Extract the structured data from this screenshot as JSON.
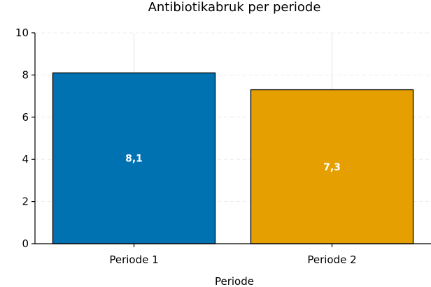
{
  "chart_data": {
    "type": "bar",
    "title": "Antibiotikabruk per periode",
    "xlabel": "Periode",
    "ylabel": "",
    "categories": [
      "Periode 1",
      "Periode 2"
    ],
    "values": [
      8.1,
      7.3
    ],
    "data_labels": [
      "8,1",
      "7,3"
    ],
    "colors": [
      "#0072b2",
      "#e69f00"
    ],
    "ylim": [
      0,
      10
    ],
    "yticks": [
      0,
      2,
      4,
      6,
      8,
      10
    ],
    "ytick_labels": [
      "0",
      "2",
      "4",
      "6",
      "8",
      "10"
    ],
    "grid": true,
    "legend": "none"
  }
}
